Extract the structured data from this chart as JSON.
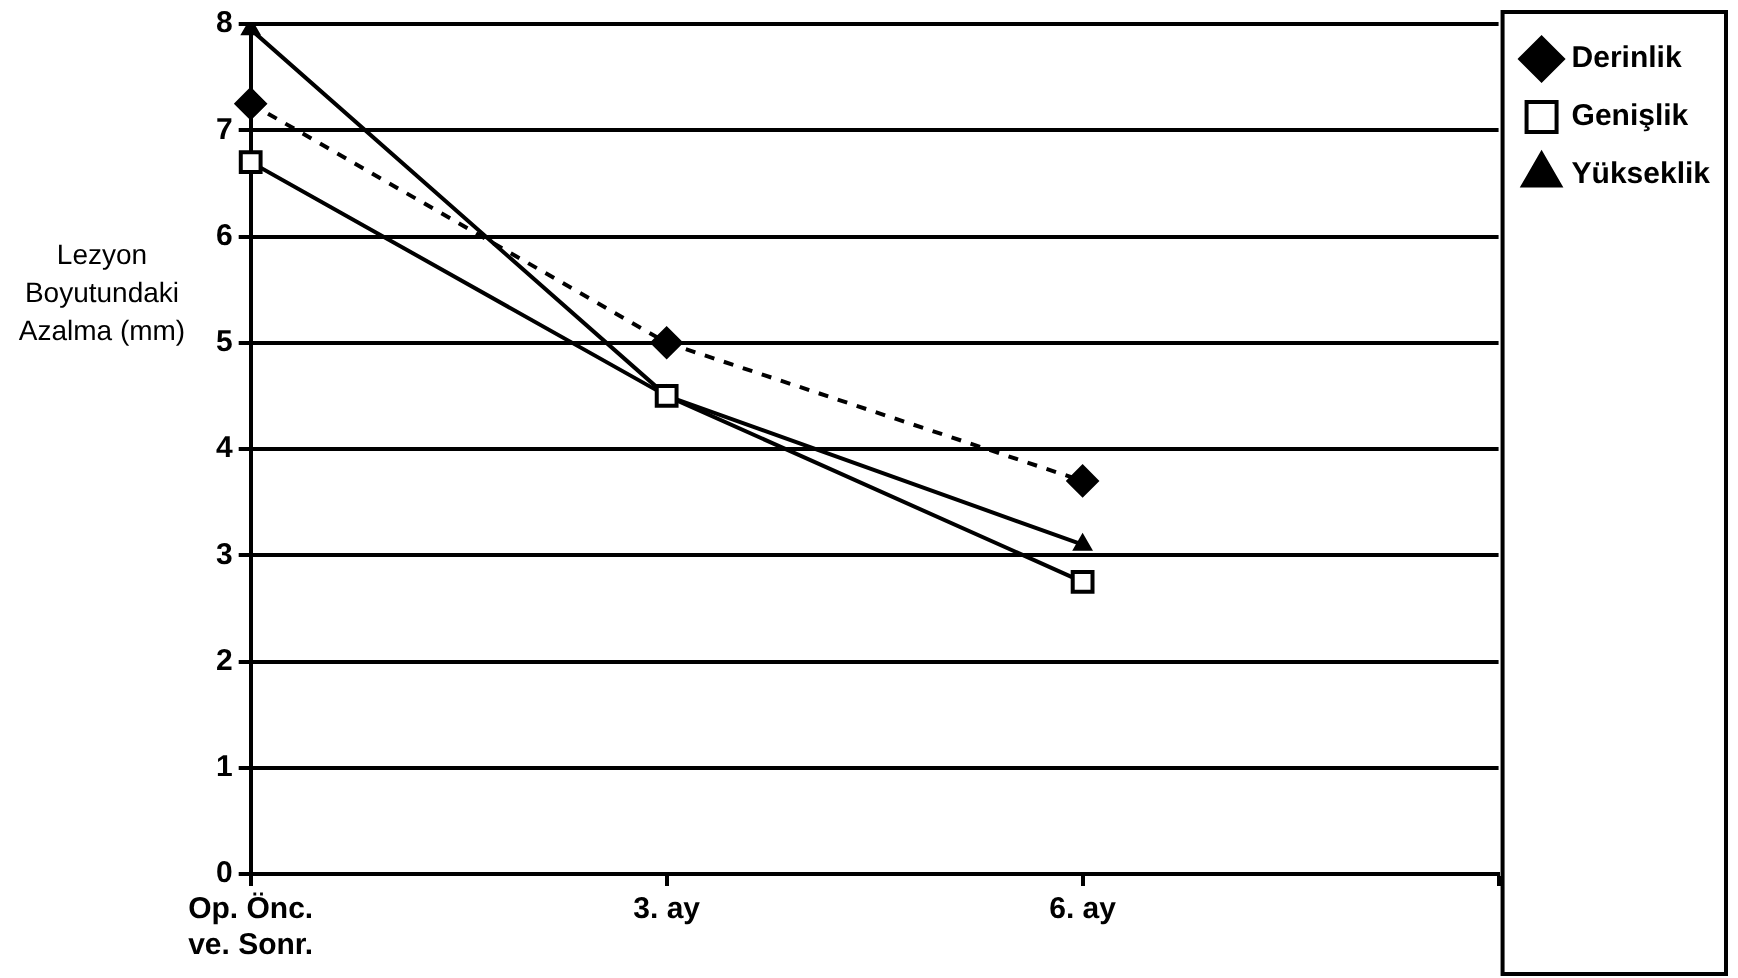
{
  "chart_data": {
    "type": "line",
    "ylabel": "Lezyon Boyutundaki Azalma (mm)",
    "categories": [
      "Op. Önc. ve. Sonr.",
      "3. ay",
      "6. ay",
      null
    ],
    "series": [
      {
        "name": "Derinlik",
        "color": "#000000",
        "values": [
          7.25,
          5.0,
          3.7,
          null
        ],
        "marker": "diamond",
        "line_style": "dashed"
      },
      {
        "name": "Genişlik",
        "color": "#000000",
        "values": [
          6.7,
          4.5,
          2.75,
          null
        ],
        "marker": "square",
        "line_style": "solid"
      },
      {
        "name": "Yükseklik",
        "color": "#000000",
        "values": [
          7.95,
          4.5,
          3.1,
          null
        ],
        "marker": "triangle",
        "line_style": "solid"
      }
    ],
    "ylim": [
      0,
      8
    ],
    "yticks": [
      0,
      1,
      2,
      3,
      4,
      5,
      6,
      7,
      8
    ],
    "grid": "y",
    "legend": "top right"
  }
}
